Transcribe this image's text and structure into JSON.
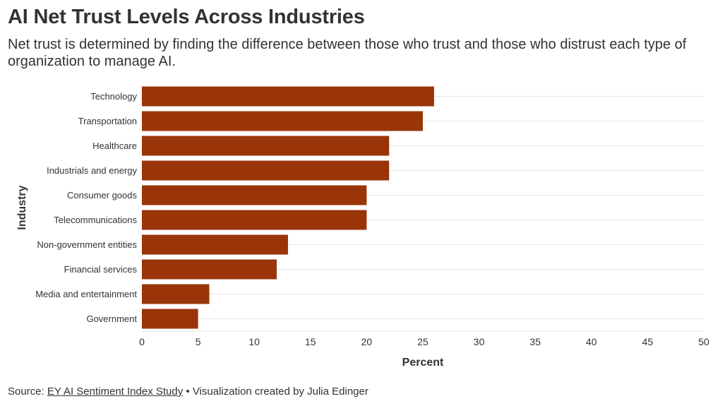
{
  "header": {
    "title": "AI Net Trust Levels Across Industries",
    "subtitle": "Net trust is determined by finding the difference between those who trust and those who distrust each type of organization to manage AI."
  },
  "footer": {
    "source_prefix": "Source: ",
    "source_link": "EY AI Sentiment Index Study",
    "separator": " • ",
    "credit": "Visualization created by Julia Edinger"
  },
  "colors": {
    "bar": "#993508",
    "grid": "#e6e6e6",
    "text": "#333333"
  },
  "chart_data": {
    "type": "bar",
    "orientation": "horizontal",
    "title": "AI Net Trust Levels Across Industries",
    "xlabel": "Percent",
    "ylabel": "Industry",
    "xlim": [
      0,
      50
    ],
    "xticks": [
      0,
      5,
      10,
      15,
      20,
      25,
      30,
      35,
      40,
      45,
      50
    ],
    "grid": true,
    "categories": [
      "Technology",
      "Transportation",
      "Healthcare",
      "Industrials and energy",
      "Consumer goods",
      "Telecommunications",
      "Non-government entities",
      "Financial services",
      "Media and entertainment",
      "Government"
    ],
    "values": [
      26,
      25,
      22,
      22,
      20,
      20,
      13,
      12,
      6,
      5
    ]
  }
}
